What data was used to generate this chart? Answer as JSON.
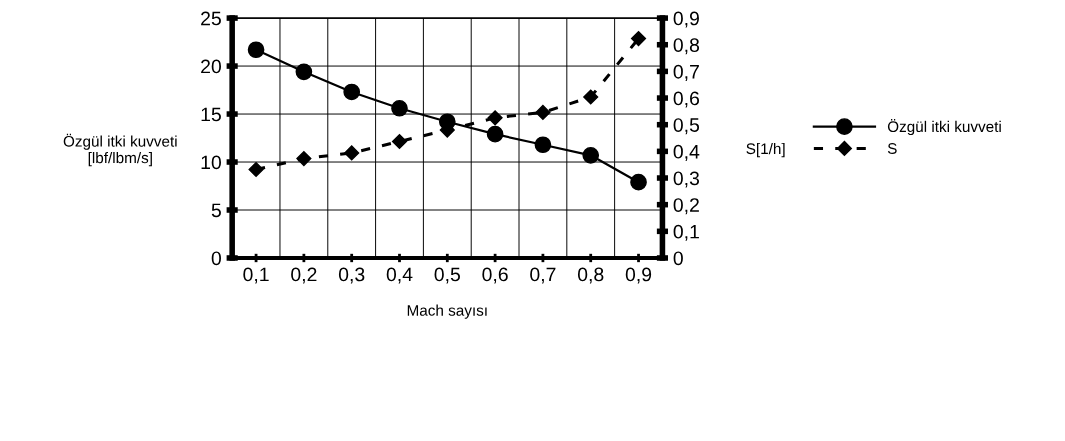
{
  "chart_data": {
    "type": "line",
    "xlabel": "Mach sayısı",
    "ylabel": "Özgül itki kuvveti\n[lbf/lbm/s]",
    "y2label": "S[1/h]",
    "categories": [
      "0,1",
      "0,2",
      "0,3",
      "0,4",
      "0,5",
      "0,6",
      "0,7",
      "0,8",
      "0,9"
    ],
    "series": [
      {
        "name": "Özgül itki kuvveti",
        "color": "#000000",
        "marker": "circle",
        "line_style": "solid",
        "values": [
          21.7,
          19.4,
          17.3,
          15.6,
          14.2,
          12.9,
          11.8,
          10.7,
          7.9
        ]
      },
      {
        "name": "S",
        "color": "#000000",
        "marker": "diamond",
        "line_style": "dashed",
        "axis": "y2",
        "values": [
          0.332,
          0.373,
          0.394,
          0.437,
          0.48,
          0.526,
          0.546,
          0.604,
          0.823
        ]
      }
    ],
    "ylim": [
      0,
      25
    ],
    "yticks": [
      0,
      5,
      10,
      15,
      20,
      25
    ],
    "y2lim": [
      0,
      0.9
    ],
    "y2ticks": [
      {
        "value": 0,
        "label": "0"
      },
      {
        "value": 0.1,
        "label": "0,1"
      },
      {
        "value": 0.2,
        "label": "0,2"
      },
      {
        "value": 0.3,
        "label": "0,3"
      },
      {
        "value": 0.4,
        "label": "0,4"
      },
      {
        "value": 0.5,
        "label": "0,5"
      },
      {
        "value": 0.6,
        "label": "0,6"
      },
      {
        "value": 0.7,
        "label": "0,7"
      },
      {
        "value": 0.8,
        "label": "0,8"
      },
      {
        "value": 0.9,
        "label": "0,9"
      }
    ],
    "grid": true,
    "legend": "right"
  }
}
